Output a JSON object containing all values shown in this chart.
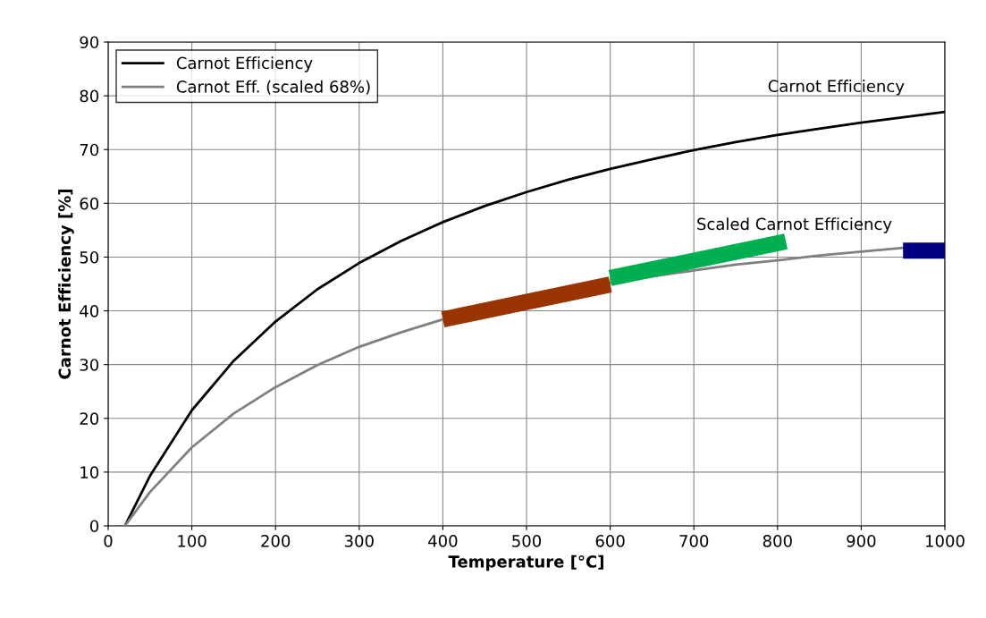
{
  "chart_data": {
    "type": "line",
    "xlabel": "Temperature [°C]",
    "ylabel": "Carnot Efficiency [%]",
    "x": [
      20,
      50,
      100,
      150,
      200,
      250,
      300,
      350,
      400,
      450,
      500,
      550,
      600,
      650,
      700,
      750,
      800,
      850,
      900,
      950,
      1000
    ],
    "series": [
      {
        "name": "Carnot Efficiency",
        "color": "#000000",
        "values": [
          0,
          9.3,
          21.5,
          30.7,
          38.0,
          44.0,
          48.9,
          53.0,
          56.5,
          59.5,
          62.1,
          64.4,
          66.4,
          68.2,
          69.9,
          71.4,
          72.7,
          73.9,
          75.0,
          76.0,
          77.0
        ]
      },
      {
        "name": "Carnot Eff. (scaled 68%)",
        "color": "#808080",
        "values": [
          0,
          6.3,
          14.6,
          20.9,
          25.8,
          29.9,
          33.3,
          36.0,
          38.4,
          null,
          null,
          null,
          45.2,
          46.4,
          47.5,
          48.6,
          49.4,
          50.3,
          51.0,
          51.7,
          52.4
        ]
      },
      {
        "color": "#993300",
        "x": [
          400,
          600
        ],
        "values": [
          38.4,
          44.9
        ]
      },
      {
        "color": "#00b050",
        "x": [
          600,
          810
        ],
        "values": [
          46.1,
          52.9
        ]
      },
      {
        "color": "#000080",
        "x": [
          950,
          1000
        ],
        "values": [
          51.2,
          51.2
        ]
      }
    ],
    "xlim": [
      0,
      1000
    ],
    "xticks": [
      0,
      100,
      200,
      300,
      400,
      500,
      600,
      700,
      800,
      900,
      1000
    ],
    "ylim": [
      0,
      90
    ],
    "yticks": [
      0,
      10,
      20,
      30,
      40,
      50,
      60,
      70,
      80,
      90
    ],
    "grid": true,
    "legend": "top left",
    "marker": "none",
    "line_style": "solid",
    "annotations": [
      "Carnot Efficiency",
      "Scaled Carnot Efficiency"
    ]
  }
}
